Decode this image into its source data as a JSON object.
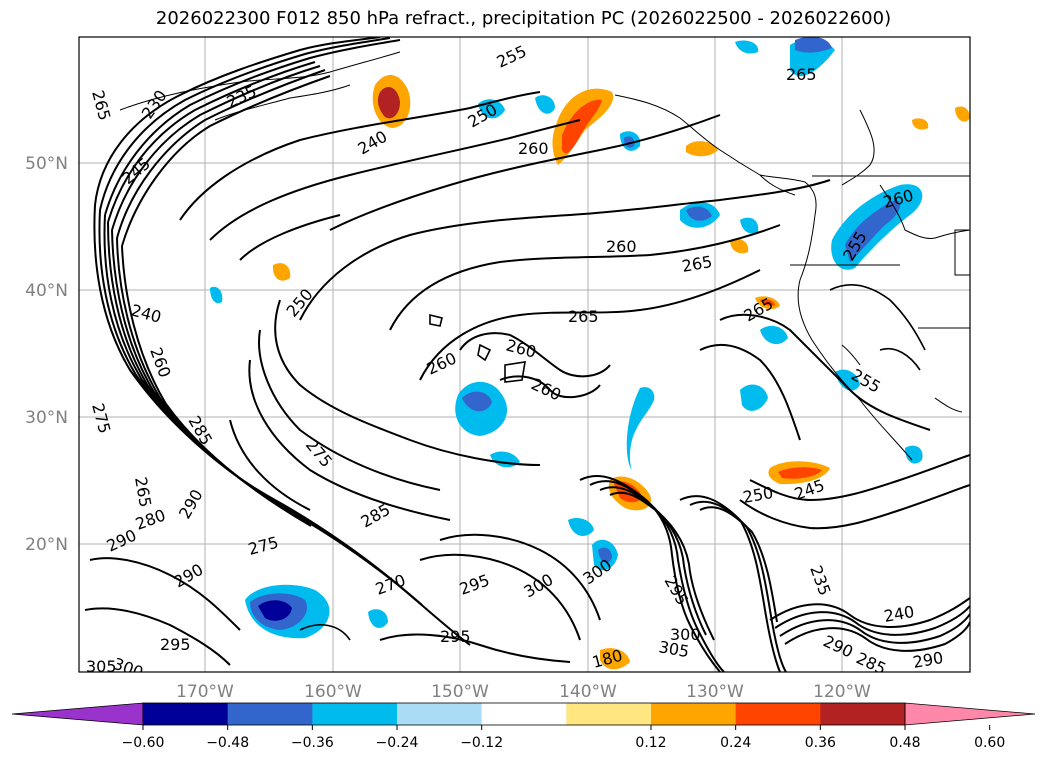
{
  "title": "2026022300 F012 850 hPa refract., precipitation PC (2026022500 - 2026022600)",
  "lat_labels": [
    "50°N",
    "40°N",
    "30°N",
    "20°N"
  ],
  "lon_labels": [
    "170°W",
    "160°W",
    "150°W",
    "140°W",
    "130°W",
    "120°W"
  ],
  "colorbar": {
    "colors": [
      "#9933cc",
      "#000099",
      "#3366cc",
      "#00bbee",
      "#aaddf5",
      "#ffffff",
      "#ffe680",
      "#ffa500",
      "#ff4400",
      "#b22222",
      "#ff88aa"
    ],
    "tick_labels": [
      "−0.60",
      "−0.48",
      "−0.36",
      "−0.24",
      "−0.12",
      "0.12",
      "0.24",
      "0.36",
      "0.48",
      "0.60"
    ]
  },
  "contour_labels": [
    "265",
    "230",
    "235",
    "255",
    "250",
    "240",
    "260",
    "245",
    "260",
    "265",
    "265",
    "250",
    "265",
    "260",
    "260",
    "255",
    "240",
    "260",
    "265",
    "260",
    "260",
    "255",
    "275",
    "285",
    "275",
    "285",
    "280",
    "290",
    "290",
    "275",
    "270",
    "295",
    "300",
    "300",
    "295",
    "300",
    "305",
    "295",
    "250",
    "245",
    "235",
    "290",
    "285",
    "240",
    "290",
    "295",
    "305",
    "300",
    "180",
    "265",
    "290"
  ]
}
